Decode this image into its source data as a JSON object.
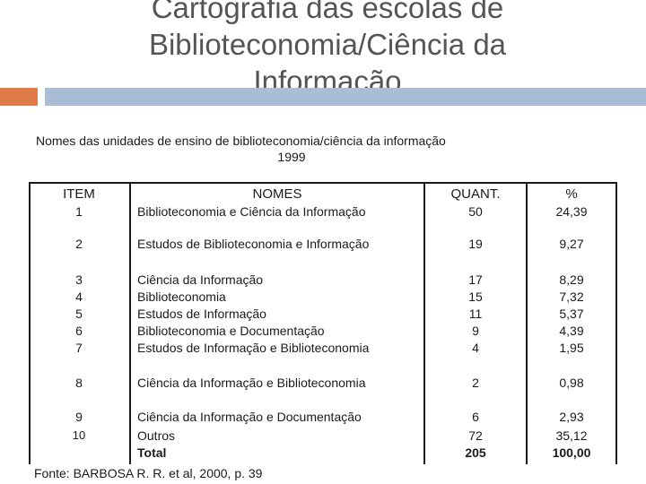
{
  "slide": {
    "title": "Cartografia das escolas de Biblioteconomia/Ciência da Informação",
    "accent_color": "#e07b4a",
    "bar_color": "#a9bdd6"
  },
  "table": {
    "caption_line1": "Nomes das unidades de ensino de biblioteconomia/ciência da informação",
    "caption_line2": "1999",
    "headers": {
      "item": "ITEM",
      "nomes": "NOMES",
      "quant": "QUANT.",
      "pct": "%"
    },
    "rows": [
      {
        "item": "1",
        "nome": "Biblioteconomia e Ciência da Informação",
        "quant": "50",
        "pct": "24,39"
      },
      {
        "item": "2",
        "nome": "Estudos de Biblioteconomia e Informação",
        "quant": "19",
        "pct": "9,27"
      },
      {
        "item": "3",
        "nome": "Ciência da Informação",
        "quant": "17",
        "pct": "8,29"
      },
      {
        "item": "4",
        "nome": "Biblioteconomia",
        "quant": "15",
        "pct": "7,32"
      },
      {
        "item": "5",
        "nome": "Estudos de Informação",
        "quant": "11",
        "pct": "5,37"
      },
      {
        "item": "6",
        "nome": "Biblioteconomia e Documentação",
        "quant": "9",
        "pct": "4,39"
      },
      {
        "item": "7",
        "nome": "Estudos de Informação e Biblioteconomia",
        "quant": "4",
        "pct": "1,95"
      },
      {
        "item": "8",
        "nome": "Ciência da Informação e Biblioteconomia",
        "quant": "2",
        "pct": "0,98"
      },
      {
        "item": "9",
        "nome": "Ciência da Informação e Documentação",
        "quant": "6",
        "pct": "2,93"
      },
      {
        "item": "10",
        "nome": "Outros",
        "quant": "72",
        "pct": "35,12"
      }
    ],
    "total": {
      "label": "Total",
      "quant": "205",
      "pct": "100,00"
    }
  },
  "source": "Fonte: BARBOSA R. R. et al, 2000, p. 39"
}
